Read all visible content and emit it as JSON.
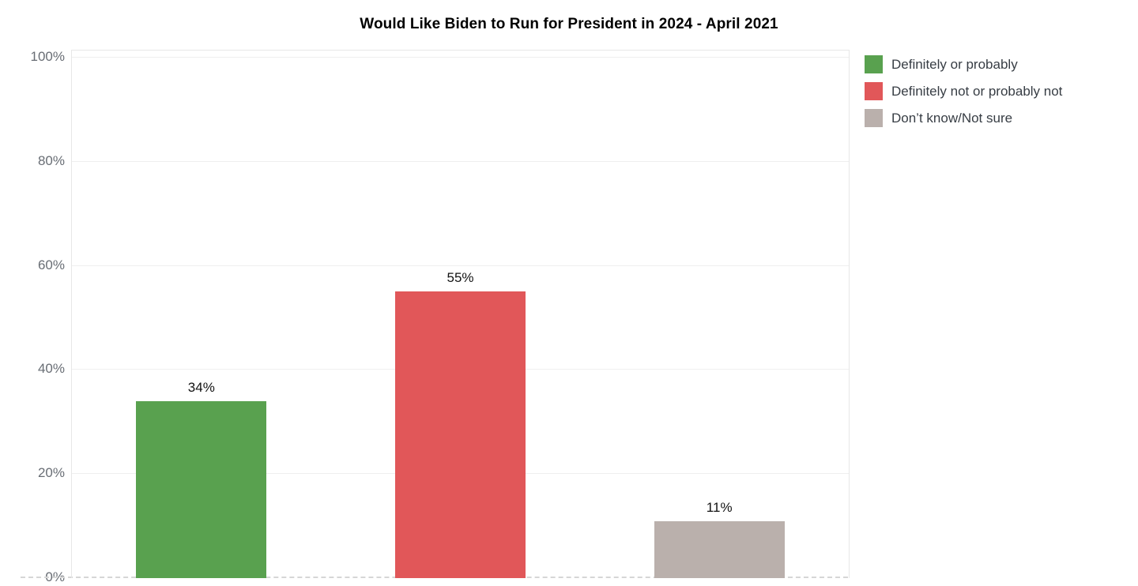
{
  "chart_data": {
    "type": "bar",
    "title": "Would Like Biden to Run for President in 2024 - April 2021",
    "categories": [
      "Definitely or probably",
      "Definitely not or probably not",
      "Don’t know/Not sure"
    ],
    "values": [
      34,
      55,
      11
    ],
    "data_labels": [
      "34%",
      "55%",
      "11%"
    ],
    "bar_colors": [
      "#59a14f",
      "#e15759",
      "#bab0ac"
    ],
    "xlabel": "",
    "ylabel": "",
    "ylim": [
      0,
      100
    ],
    "ytick_values": [
      100,
      80,
      60,
      40,
      20,
      0
    ],
    "grid": "horizontal",
    "zero_line_style": "dashed",
    "legend_position": "top-right"
  },
  "y_axis": {
    "tick_labels": [
      "100%",
      "80%",
      "60%",
      "40%",
      "20%",
      "0%"
    ]
  },
  "legend": {
    "items": [
      {
        "label": "Definitely or probably",
        "color": "#59a14f"
      },
      {
        "label": "Definitely not or probably not",
        "color": "#e15759"
      },
      {
        "label": "Don’t know/Not sure",
        "color": "#bab0ac"
      }
    ]
  }
}
